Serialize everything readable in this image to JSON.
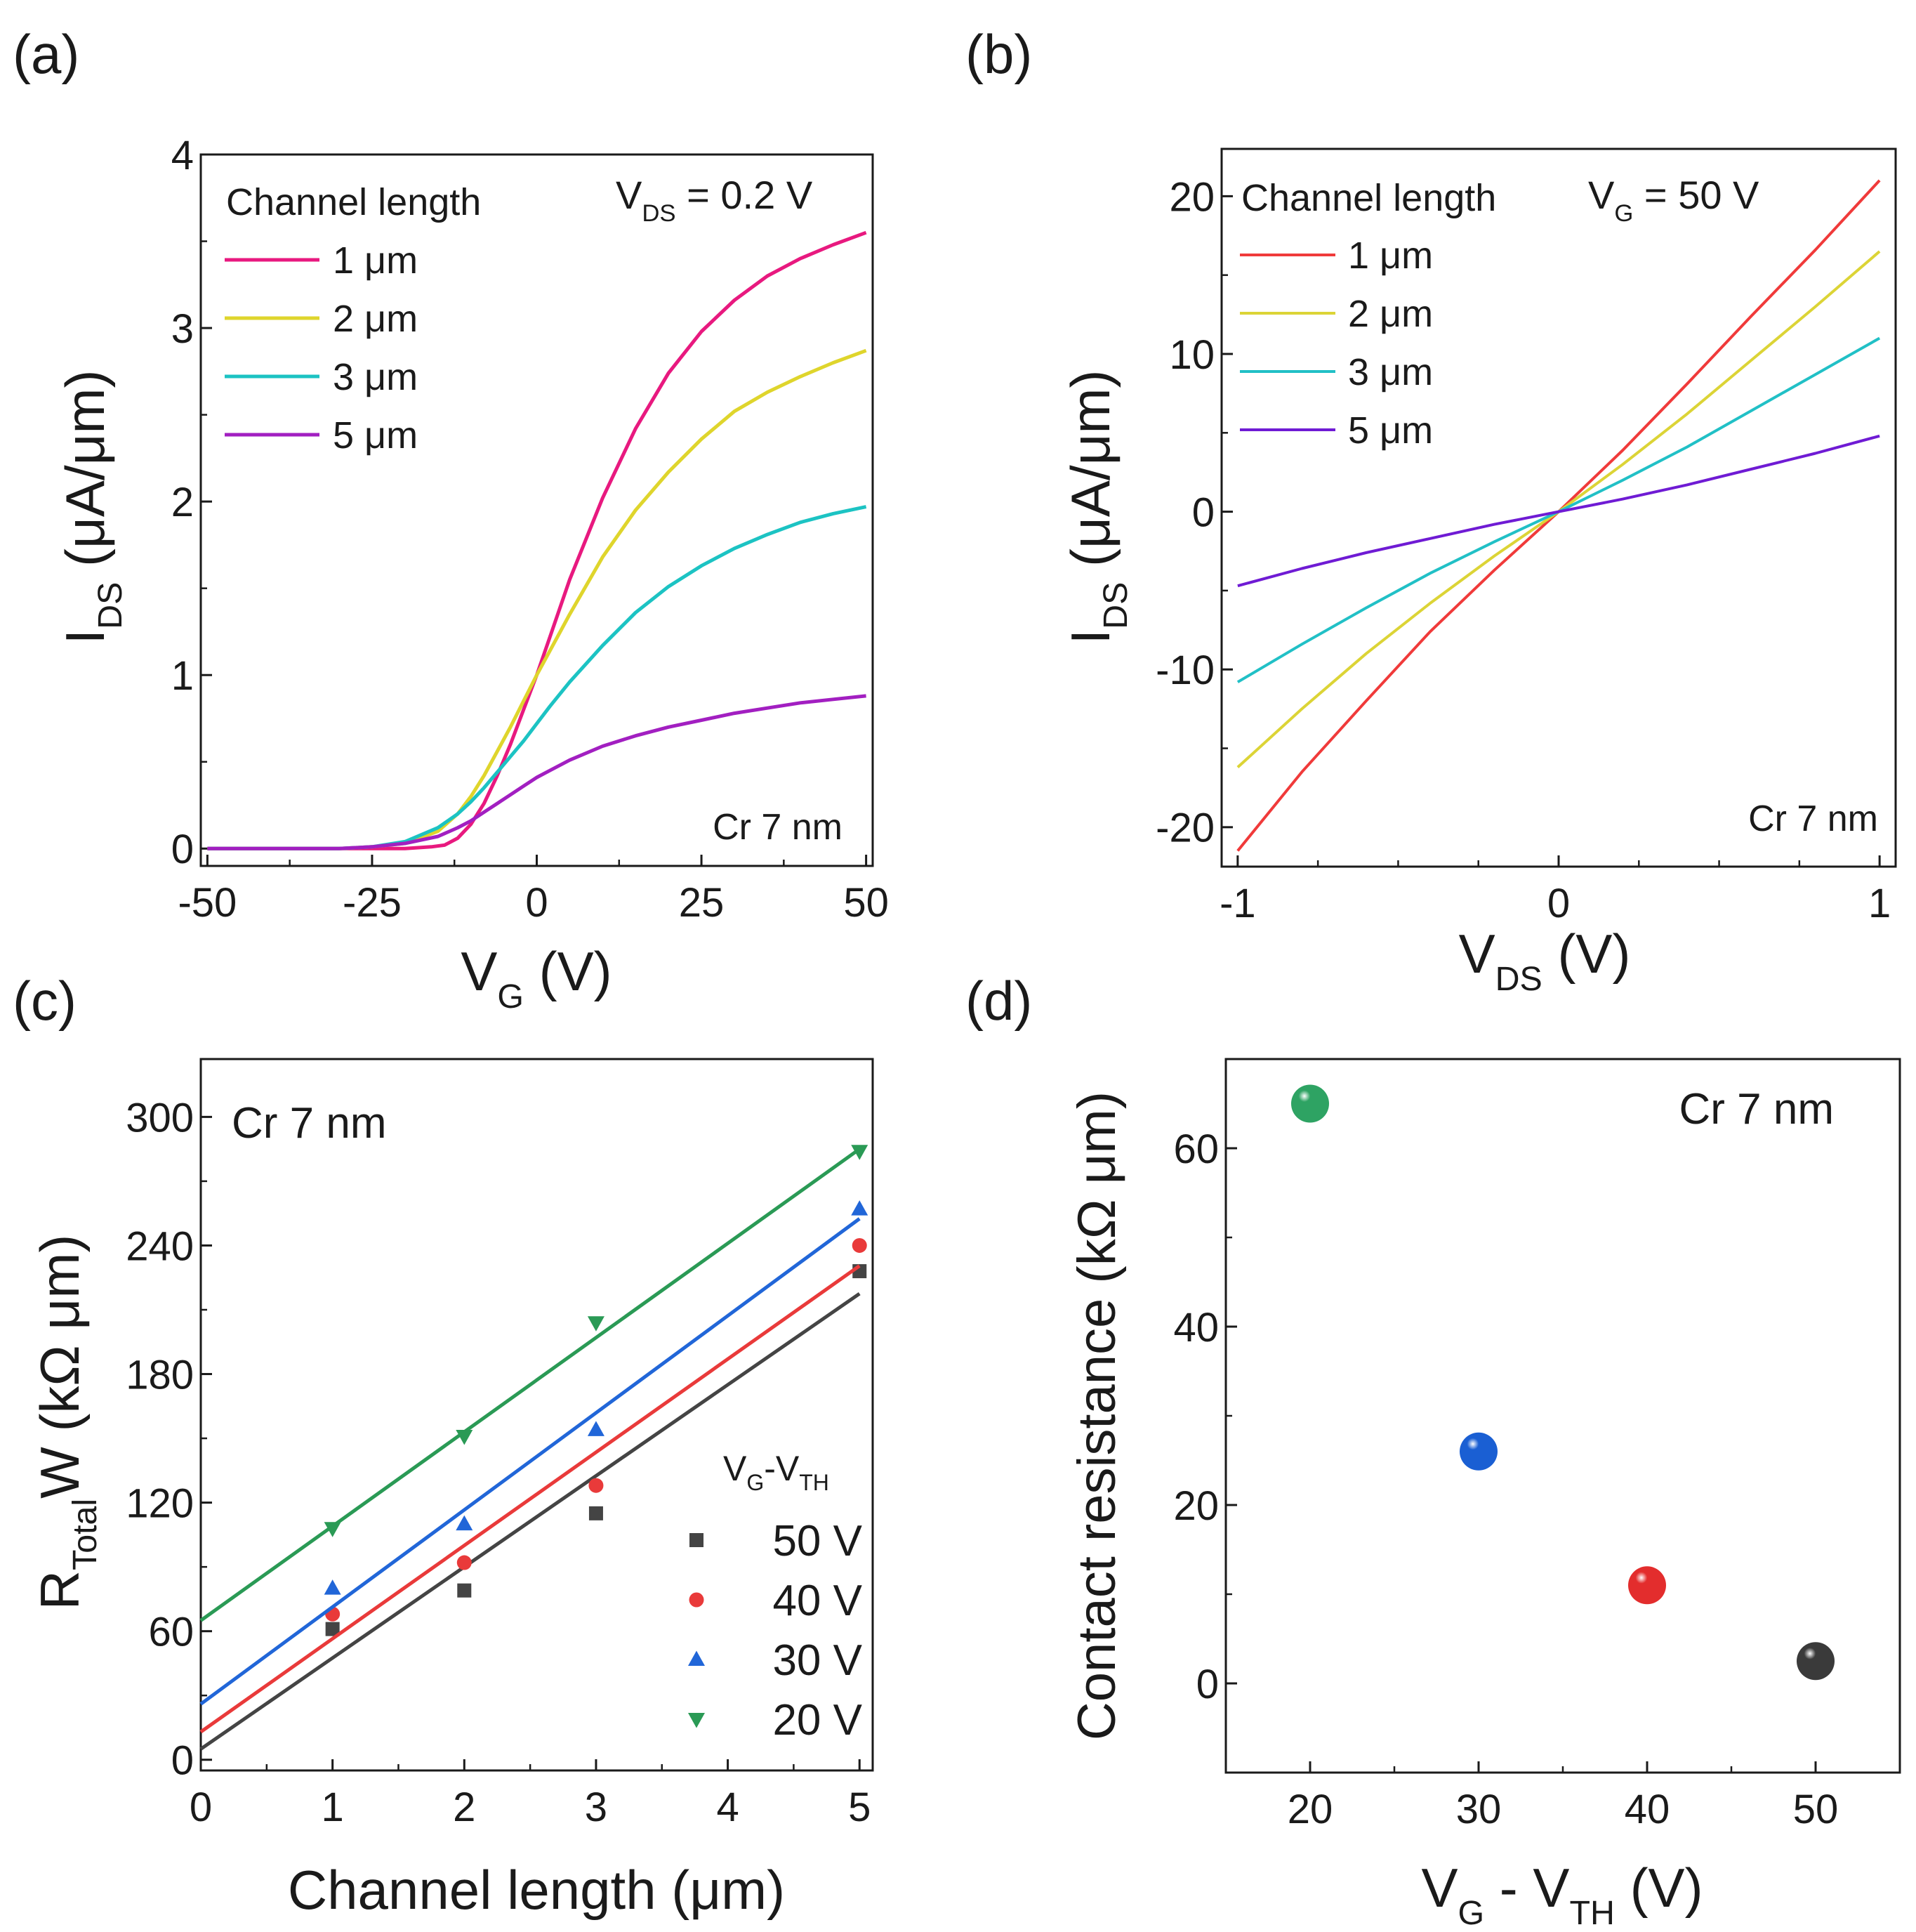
{
  "chart_data": [
    {
      "id": "a",
      "type": "line",
      "panel_label": "(a)",
      "xlabel_main": "V",
      "xlabel_sub": "G",
      "xlabel_unit": " (V)",
      "ylabel_main": "I",
      "ylabel_sub": "DS",
      "ylabel_unit": " (μA/μm)",
      "xlim": [
        -51,
        51
      ],
      "ylim": [
        -0.1,
        4.0
      ],
      "xticks": [
        -50,
        -25,
        0,
        25,
        50
      ],
      "xtick_labels": [
        "-50",
        "-25",
        "0",
        "25",
        "50"
      ],
      "yticks": [
        0,
        1,
        2,
        3,
        4
      ],
      "ytick_labels": [
        "0",
        "1",
        "2",
        "3",
        "4"
      ],
      "legend_title": "Channel length",
      "annotation_main": "V",
      "annotation_sub": "DS",
      "annotation_rest": " = 0.2 V",
      "note": "Cr 7 nm",
      "series": [
        {
          "name": "1 μm",
          "color": "#e8197f",
          "x": [
            -50,
            -40,
            -30,
            -20,
            -16,
            -14,
            -12,
            -10,
            -8,
            -6,
            -4,
            -2,
            0,
            2,
            5,
            10,
            15,
            20,
            25,
            30,
            35,
            40,
            45,
            50
          ],
          "y": [
            0,
            0,
            0,
            0,
            0.01,
            0.02,
            0.06,
            0.14,
            0.26,
            0.42,
            0.6,
            0.8,
            1.0,
            1.22,
            1.55,
            2.02,
            2.42,
            2.74,
            2.98,
            3.16,
            3.3,
            3.4,
            3.48,
            3.55
          ]
        },
        {
          "name": "2 μm",
          "color": "#dfd52c",
          "x": [
            -50,
            -40,
            -30,
            -25,
            -20,
            -15,
            -12,
            -10,
            -8,
            -6,
            -4,
            -2,
            0,
            2,
            5,
            10,
            15,
            20,
            25,
            30,
            35,
            40,
            45,
            50
          ],
          "y": [
            0,
            0,
            0,
            0.01,
            0.03,
            0.1,
            0.2,
            0.3,
            0.42,
            0.56,
            0.7,
            0.85,
            1.0,
            1.14,
            1.35,
            1.68,
            1.95,
            2.17,
            2.36,
            2.52,
            2.63,
            2.72,
            2.8,
            2.87
          ]
        },
        {
          "name": "3 μm",
          "color": "#1cc3c3",
          "x": [
            -50,
            -40,
            -30,
            -25,
            -20,
            -15,
            -12,
            -10,
            -8,
            -6,
            -4,
            -2,
            0,
            2,
            5,
            10,
            15,
            20,
            25,
            30,
            35,
            40,
            45,
            50
          ],
          "y": [
            0,
            0,
            0,
            0.01,
            0.04,
            0.12,
            0.2,
            0.27,
            0.35,
            0.44,
            0.53,
            0.62,
            0.72,
            0.82,
            0.96,
            1.17,
            1.36,
            1.51,
            1.63,
            1.73,
            1.81,
            1.88,
            1.93,
            1.97
          ]
        },
        {
          "name": "5 μm",
          "color": "#a21fc1",
          "x": [
            -50,
            -40,
            -30,
            -25,
            -20,
            -15,
            -12,
            -10,
            -8,
            -6,
            -4,
            -2,
            0,
            2,
            5,
            10,
            15,
            20,
            25,
            30,
            35,
            40,
            45,
            50
          ],
          "y": [
            0,
            0,
            0,
            0.01,
            0.03,
            0.07,
            0.12,
            0.16,
            0.21,
            0.26,
            0.31,
            0.36,
            0.41,
            0.45,
            0.51,
            0.59,
            0.65,
            0.7,
            0.74,
            0.78,
            0.81,
            0.84,
            0.86,
            0.88
          ]
        }
      ]
    },
    {
      "id": "b",
      "type": "line",
      "panel_label": "(b)",
      "xlabel_main": "V",
      "xlabel_sub": "DS",
      "xlabel_unit": " (V)",
      "ylabel_main": "I",
      "ylabel_sub": "DS",
      "ylabel_unit": " (μA/μm)",
      "xlim": [
        -1.05,
        1.05
      ],
      "ylim": [
        -22.5,
        23
      ],
      "xticks": [
        -1,
        0,
        1
      ],
      "xtick_labels": [
        "-1",
        "0",
        "1"
      ],
      "yticks": [
        -20,
        -10,
        0,
        10,
        20
      ],
      "ytick_labels": [
        "-20",
        "-10",
        "0",
        "10",
        "20"
      ],
      "legend_title": "Channel length",
      "annotation_main": "V",
      "annotation_sub": "G",
      "annotation_rest": " = 50 V",
      "note": "Cr 7 nm",
      "series": [
        {
          "name": "1 μm",
          "color": "#f03a3a",
          "x": [
            -1,
            -0.8,
            -0.6,
            -0.4,
            -0.2,
            0,
            0.2,
            0.4,
            0.6,
            0.8,
            1
          ],
          "y": [
            -21.5,
            -16.5,
            -12,
            -7.6,
            -3.7,
            0,
            3.9,
            8.1,
            12.4,
            16.6,
            21
          ]
        },
        {
          "name": "2 μm",
          "color": "#dcd436",
          "x": [
            -1,
            -0.8,
            -0.6,
            -0.4,
            -0.2,
            0,
            0.2,
            0.4,
            0.6,
            0.8,
            1
          ],
          "y": [
            -16.2,
            -12.5,
            -9,
            -5.8,
            -2.8,
            0,
            3,
            6.2,
            9.6,
            13,
            16.5
          ]
        },
        {
          "name": "3 μm",
          "color": "#21c0c6",
          "x": [
            -1,
            -0.8,
            -0.6,
            -0.4,
            -0.2,
            0,
            0.2,
            0.4,
            0.6,
            0.8,
            1
          ],
          "y": [
            -10.8,
            -8.4,
            -6.1,
            -3.9,
            -1.9,
            0,
            2,
            4.1,
            6.4,
            8.7,
            11
          ]
        },
        {
          "name": "5 μm",
          "color": "#6f1bd4",
          "x": [
            -1,
            -0.8,
            -0.6,
            -0.4,
            -0.2,
            0,
            0.2,
            0.4,
            0.6,
            0.8,
            1
          ],
          "y": [
            -4.7,
            -3.6,
            -2.6,
            -1.7,
            -0.8,
            0,
            0.8,
            1.7,
            2.7,
            3.7,
            4.8
          ]
        }
      ]
    },
    {
      "id": "c",
      "type": "scatter",
      "panel_label": "(c)",
      "xlabel": "Channel length (μm)",
      "ylabel_main": "R",
      "ylabel_sub": "Total",
      "ylabel_unit": "W (kΩ μm)",
      "xlim": [
        0,
        5.1
      ],
      "ylim": [
        -5,
        327
      ],
      "xticks": [
        0,
        1,
        2,
        3,
        4,
        5
      ],
      "xtick_labels": [
        "0",
        "1",
        "2",
        "3",
        "4",
        "5"
      ],
      "yticks": [
        0,
        60,
        120,
        180,
        240,
        300
      ],
      "ytick_labels": [
        "0",
        "60",
        "120",
        "180",
        "240",
        "300"
      ],
      "note": "Cr 7 nm",
      "legend_title_main": "V",
      "legend_title_sub1": "G",
      "legend_title_mid": "-V",
      "legend_title_sub2": "TH",
      "categories": [
        1,
        2,
        3,
        5
      ],
      "series": [
        {
          "name": "50 V",
          "marker": "square",
          "color": "#444444",
          "values": [
            61,
            79,
            115,
            228
          ],
          "fit": [
            5,
            42.5
          ]
        },
        {
          "name": "40 V",
          "marker": "circle",
          "color": "#e93a3a",
          "values": [
            68,
            92,
            128,
            240
          ],
          "fit": [
            13,
            43.5
          ]
        },
        {
          "name": "30 V",
          "marker": "triangle-up",
          "color": "#2166d8",
          "values": [
            80,
            110,
            154,
            257
          ],
          "fit": [
            26,
            45.3
          ]
        },
        {
          "name": "20 V",
          "marker": "triangle-down",
          "color": "#2a9a55",
          "values": [
            108,
            151,
            204,
            284
          ],
          "fit": [
            65,
            44
          ]
        }
      ]
    },
    {
      "id": "d",
      "type": "scatter",
      "panel_label": "(d)",
      "xlabel_main": "V",
      "xlabel_sub1": "G",
      "xlabel_mid": " - V",
      "xlabel_sub2": "TH",
      "xlabel_unit": " (V)",
      "ylabel": "Contact resistance (kΩ μm)",
      "xlim": [
        15,
        55
      ],
      "ylim": [
        -10,
        70
      ],
      "xticks": [
        20,
        30,
        40,
        50
      ],
      "xtick_labels": [
        "20",
        "30",
        "40",
        "50"
      ],
      "yticks": [
        0,
        20,
        40,
        60
      ],
      "ytick_labels": [
        "0",
        "20",
        "40",
        "60"
      ],
      "note": "Cr 7 nm",
      "points": [
        {
          "x": 20,
          "y": 65,
          "color": "#2ea363"
        },
        {
          "x": 30,
          "y": 26,
          "color": "#1a5fd3"
        },
        {
          "x": 40,
          "y": 11,
          "color": "#e32d2d"
        },
        {
          "x": 50,
          "y": 2.5,
          "color": "#3a3a3a"
        }
      ]
    }
  ]
}
